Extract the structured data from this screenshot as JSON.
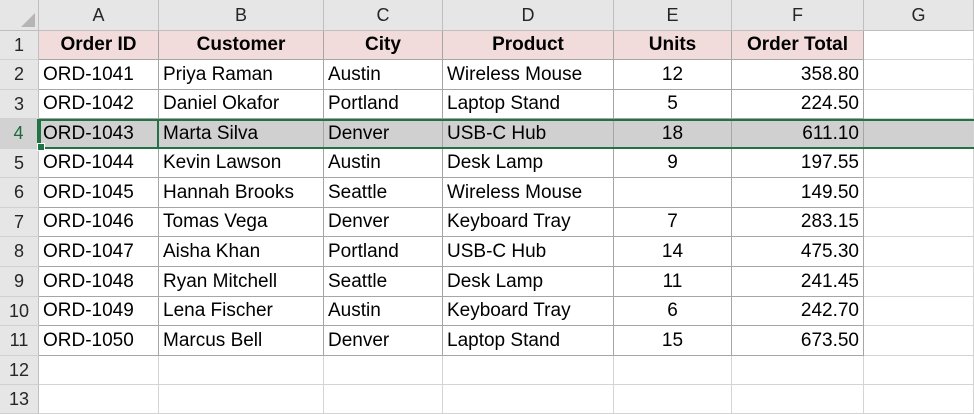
{
  "columns": [
    "A",
    "B",
    "C",
    "D",
    "E",
    "F",
    "G"
  ],
  "rows": [
    "1",
    "2",
    "3",
    "4",
    "5",
    "6",
    "7",
    "8",
    "9",
    "10",
    "11",
    "12",
    "13"
  ],
  "active_row": 4,
  "table": {
    "headers": [
      "Order ID",
      "Customer",
      "City",
      "Product",
      "Units",
      "Order Total"
    ],
    "data": [
      [
        "ORD-1041",
        "Priya Raman",
        "Austin",
        "Wireless Mouse",
        "12",
        "358.80"
      ],
      [
        "ORD-1042",
        "Daniel Okafor",
        "Portland",
        "Laptop Stand",
        "5",
        "224.50"
      ],
      [
        "ORD-1043",
        "Marta Silva",
        "Denver",
        "USB-C Hub",
        "18",
        "611.10"
      ],
      [
        "ORD-1044",
        "Kevin Lawson",
        "Austin",
        "Desk Lamp",
        "9",
        "197.55"
      ],
      [
        "ORD-1045",
        "Hannah Brooks",
        "Seattle",
        "Wireless Mouse",
        "",
        "149.50"
      ],
      [
        "ORD-1046",
        "Tomas Vega",
        "Denver",
        "Keyboard Tray",
        "7",
        "283.15"
      ],
      [
        "ORD-1047",
        "Aisha Khan",
        "Portland",
        "USB-C Hub",
        "14",
        "475.30"
      ],
      [
        "ORD-1048",
        "Ryan Mitchell",
        "Seattle",
        "Desk Lamp",
        "11",
        "241.45"
      ],
      [
        "ORD-1049",
        "Lena Fischer",
        "Austin",
        "Keyboard Tray",
        "6",
        "242.70"
      ],
      [
        "ORD-1050",
        "Marcus Bell",
        "Denver",
        "Laptop Stand",
        "15",
        "673.50"
      ]
    ]
  },
  "colors": {
    "header_fill": "#f2dcdb",
    "selection_accent": "#217346",
    "selected_row_fill": "#d0d0d0"
  }
}
